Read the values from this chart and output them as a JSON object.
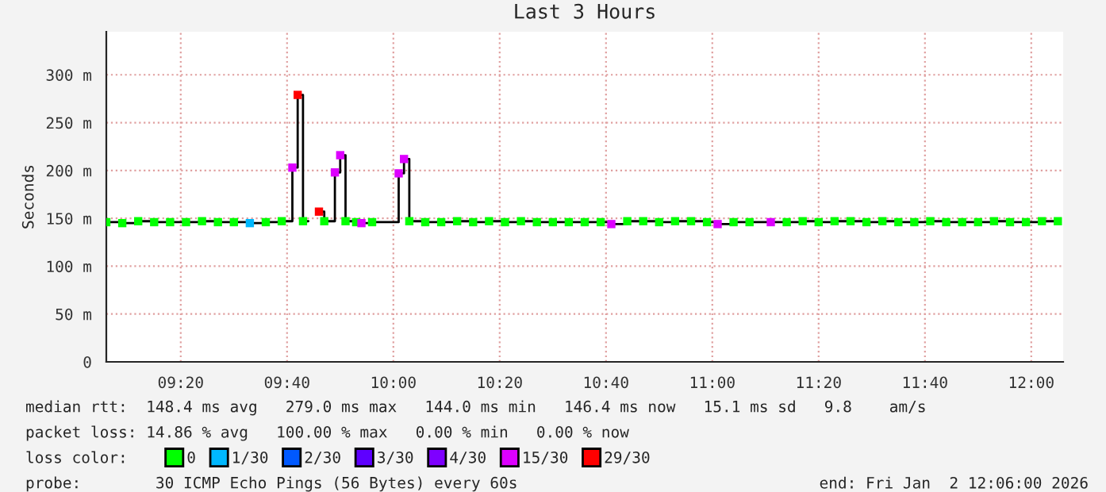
{
  "chart_data": {
    "type": "step",
    "title": "Last 3 Hours",
    "ylabel": "Seconds",
    "xlim": [
      "2026-01-02T09:06",
      "2026-01-02T12:06"
    ],
    "xticks": [
      {
        "value": "2026-01-02T09:20",
        "label": "09:20"
      },
      {
        "value": "2026-01-02T09:40",
        "label": "09:40"
      },
      {
        "value": "2026-01-02T10:00",
        "label": "10:00"
      },
      {
        "value": "2026-01-02T10:20",
        "label": "10:20"
      },
      {
        "value": "2026-01-02T10:40",
        "label": "10:40"
      },
      {
        "value": "2026-01-02T11:00",
        "label": "11:00"
      },
      {
        "value": "2026-01-02T11:20",
        "label": "11:20"
      },
      {
        "value": "2026-01-02T11:40",
        "label": "11:40"
      },
      {
        "value": "2026-01-02T12:00",
        "label": "12:00"
      }
    ],
    "ylim": [
      0,
      345
    ],
    "yticks": [
      0,
      {
        "value": 50,
        "label": "50 m"
      },
      {
        "value": 100,
        "label": "100 m"
      },
      {
        "value": 150,
        "label": "150 m"
      },
      {
        "value": 200,
        "label": "200 m"
      },
      {
        "value": 250,
        "label": "250 m"
      },
      {
        "value": 300,
        "label": "300 m"
      }
    ],
    "grid": true,
    "legend": "bottom",
    "legend_title": "loss color:",
    "annotations": [
      "median rtt:  148.4 ms avg   279.0 ms max   144.0 ms min   146.4 ms now   15.1 ms sd   9.8    am/s",
      "packet loss: 14.86 % avg   100.00 % max   0.00 % min   0.00 % now",
      "probe:        30 ICMP Echo Pings (56 Bytes) every 60s",
      "end: Fri Jan  2 12:06:00 2026"
    ],
    "series": [
      {
        "color": "#000000",
        "line_style": "solid",
        "x": [
          "2026-01-02T09:06",
          "2026-01-02T09:09",
          "2026-01-02T09:12",
          "2026-01-02T09:15",
          "2026-01-02T09:18",
          "2026-01-02T09:21",
          "2026-01-02T09:24",
          "2026-01-02T09:27",
          "2026-01-02T09:30",
          "2026-01-02T09:33",
          "2026-01-02T09:36",
          "2026-01-02T09:39",
          "2026-01-02T09:41",
          "2026-01-02T09:42",
          "2026-01-02T09:43",
          "2026-01-02T09:44",
          "2026-01-02T09:46",
          "2026-01-02T09:47",
          "2026-01-02T09:49",
          "2026-01-02T09:50",
          "2026-01-02T09:51",
          "2026-01-02T09:53",
          "2026-01-02T09:54",
          "2026-01-02T09:56",
          "2026-01-02T10:01",
          "2026-01-02T10:02",
          "2026-01-02T10:03",
          "2026-01-02T10:06",
          "2026-01-02T10:09",
          "2026-01-02T10:12",
          "2026-01-02T10:15",
          "2026-01-02T10:18",
          "2026-01-02T10:21",
          "2026-01-02T10:24",
          "2026-01-02T10:27",
          "2026-01-02T10:30",
          "2026-01-02T10:33",
          "2026-01-02T10:36",
          "2026-01-02T10:39",
          "2026-01-02T10:41",
          "2026-01-02T10:44",
          "2026-01-02T10:47",
          "2026-01-02T10:50",
          "2026-01-02T10:53",
          "2026-01-02T10:56",
          "2026-01-02T10:59",
          "2026-01-02T11:01",
          "2026-01-02T11:04",
          "2026-01-02T11:07",
          "2026-01-02T11:11",
          "2026-01-02T11:14",
          "2026-01-02T11:17",
          "2026-01-02T11:20",
          "2026-01-02T11:23",
          "2026-01-02T11:26",
          "2026-01-02T11:29",
          "2026-01-02T11:32",
          "2026-01-02T11:35",
          "2026-01-02T11:38",
          "2026-01-02T11:41",
          "2026-01-02T11:44",
          "2026-01-02T11:47",
          "2026-01-02T11:50",
          "2026-01-02T11:53",
          "2026-01-02T11:56",
          "2026-01-02T11:59",
          "2026-01-02T12:02",
          "2026-01-02T12:05"
        ],
        "values": [
          146,
          145,
          147,
          146,
          146,
          146,
          147,
          146,
          146,
          145,
          146,
          147,
          203,
          279,
          147,
          null,
          157,
          147,
          198,
          216,
          147,
          146,
          145,
          146,
          197,
          212,
          147,
          146,
          146,
          147,
          146,
          147,
          146,
          147,
          146,
          146,
          146,
          146,
          146,
          144,
          147,
          147,
          146,
          147,
          147,
          146,
          144,
          146,
          146,
          146,
          146,
          147,
          146,
          147,
          147,
          146,
          147,
          146,
          146,
          147,
          146,
          146,
          146,
          147,
          146,
          146,
          147,
          147
        ]
      },
      {
        "type": "scatter",
        "name": "0",
        "color": "#00ff00",
        "marker": "square",
        "x": [
          "2026-01-02T09:06",
          "2026-01-02T09:09",
          "2026-01-02T09:12",
          "2026-01-02T09:15",
          "2026-01-02T09:18",
          "2026-01-02T09:21",
          "2026-01-02T09:24",
          "2026-01-02T09:27",
          "2026-01-02T09:30",
          "2026-01-02T09:36",
          "2026-01-02T09:39",
          "2026-01-02T09:43",
          "2026-01-02T09:47",
          "2026-01-02T09:51",
          "2026-01-02T09:53",
          "2026-01-02T09:56",
          "2026-01-02T10:03",
          "2026-01-02T10:06",
          "2026-01-02T10:09",
          "2026-01-02T10:12",
          "2026-01-02T10:15",
          "2026-01-02T10:18",
          "2026-01-02T10:21",
          "2026-01-02T10:24",
          "2026-01-02T10:27",
          "2026-01-02T10:30",
          "2026-01-02T10:33",
          "2026-01-02T10:36",
          "2026-01-02T10:39",
          "2026-01-02T10:44",
          "2026-01-02T10:47",
          "2026-01-02T10:50",
          "2026-01-02T10:53",
          "2026-01-02T10:56",
          "2026-01-02T10:59",
          "2026-01-02T11:04",
          "2026-01-02T11:07",
          "2026-01-02T11:14",
          "2026-01-02T11:17",
          "2026-01-02T11:20",
          "2026-01-02T11:23",
          "2026-01-02T11:26",
          "2026-01-02T11:29",
          "2026-01-02T11:32",
          "2026-01-02T11:35",
          "2026-01-02T11:38",
          "2026-01-02T11:41",
          "2026-01-02T11:44",
          "2026-01-02T11:47",
          "2026-01-02T11:50",
          "2026-01-02T11:53",
          "2026-01-02T11:56",
          "2026-01-02T11:59",
          "2026-01-02T12:02",
          "2026-01-02T12:05"
        ],
        "values": [
          146,
          145,
          147,
          146,
          146,
          146,
          147,
          146,
          146,
          146,
          147,
          147,
          147,
          147,
          146,
          146,
          147,
          146,
          146,
          147,
          146,
          147,
          146,
          147,
          146,
          146,
          146,
          146,
          146,
          147,
          147,
          146,
          147,
          147,
          146,
          146,
          146,
          146,
          147,
          146,
          147,
          147,
          146,
          147,
          146,
          146,
          147,
          146,
          146,
          146,
          147,
          146,
          146,
          147,
          147
        ]
      },
      {
        "type": "scatter",
        "name": "1/30",
        "color": "#00b8ff",
        "marker": "square",
        "x": [
          "2026-01-02T09:33"
        ],
        "values": [
          145
        ]
      },
      {
        "type": "scatter",
        "name": "2/30",
        "color": "#0059ff",
        "marker": "square"
      },
      {
        "type": "scatter",
        "name": "3/30",
        "color": "#5e00ff",
        "marker": "square"
      },
      {
        "type": "scatter",
        "name": "4/30",
        "color": "#7e00ff",
        "marker": "square"
      },
      {
        "type": "scatter",
        "name": "15/30",
        "color": "#dd00ff",
        "marker": "square",
        "x": [
          "2026-01-02T09:41",
          "2026-01-02T09:49",
          "2026-01-02T09:50",
          "2026-01-02T09:54",
          "2026-01-02T10:01",
          "2026-01-02T10:02",
          "2026-01-02T10:41",
          "2026-01-02T11:01",
          "2026-01-02T11:11"
        ],
        "values": [
          203,
          198,
          216,
          145,
          197,
          212,
          144,
          144,
          146
        ]
      },
      {
        "type": "scatter",
        "name": "29/30",
        "color": "#ff0000",
        "marker": "square",
        "x": [
          "2026-01-02T09:42",
          "2026-01-02T09:46"
        ],
        "values": [
          279,
          157
        ]
      }
    ]
  }
}
